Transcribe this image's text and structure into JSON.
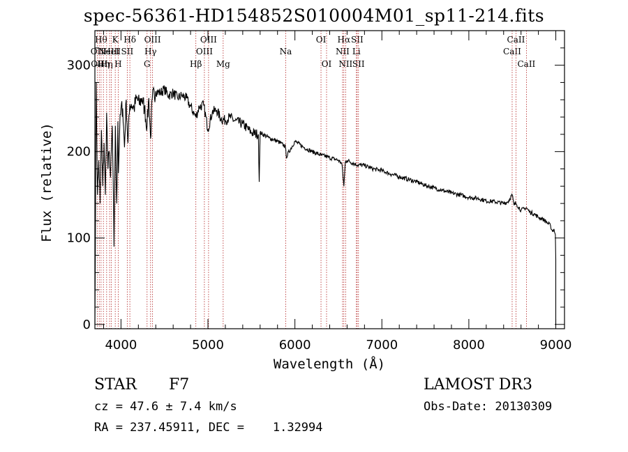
{
  "title": "spec-56361-HD154852S010004M01_sp11-214.fits",
  "info": {
    "object_class": "STAR",
    "subclass": "F7",
    "cz": "cz = 47.6 ± 7.4 km/s",
    "radec": "RA = 237.45911, DEC =    1.32994",
    "survey": "LAMOST DR3",
    "obs_date": "Obs-Date: 20130309"
  },
  "chart_data": {
    "type": "line",
    "title": "spec-56361-HD154852S010004M01_sp11-214.fits",
    "xlabel": "Wavelength (Å)",
    "ylabel": "Flux (relative)",
    "xlim": [
      3700,
      9100
    ],
    "ylim": [
      -5,
      340
    ],
    "xticks": [
      4000,
      5000,
      6000,
      7000,
      8000,
      9000
    ],
    "yticks": [
      0,
      100,
      200,
      300
    ],
    "series": [
      {
        "name": "flux",
        "x": [
          3700,
          3715,
          3730,
          3745,
          3760,
          3775,
          3790,
          3805,
          3820,
          3835,
          3850,
          3865,
          3880,
          3900,
          3920,
          3935,
          3950,
          3965,
          3970,
          3985,
          4000,
          4020,
          4040,
          4060,
          4080,
          4102,
          4120,
          4150,
          4180,
          4210,
          4240,
          4270,
          4300,
          4320,
          4340,
          4360,
          4400,
          4450,
          4500,
          4550,
          4600,
          4650,
          4700,
          4750,
          4800,
          4861,
          4900,
          4950,
          5000,
          5050,
          5100,
          5150,
          5200,
          5250,
          5300,
          5400,
          5500,
          5580,
          5590,
          5600,
          5700,
          5800,
          5890,
          5900,
          6000,
          6100,
          6200,
          6300,
          6400,
          6500,
          6540,
          6563,
          6580,
          6600,
          6700,
          6800,
          6900,
          7000,
          7100,
          7200,
          7300,
          7400,
          7500,
          7600,
          7700,
          7800,
          7900,
          8000,
          8100,
          8200,
          8300,
          8400,
          8450,
          8498,
          8520,
          8542,
          8600,
          8662,
          8700,
          8750,
          8800,
          8850,
          8900,
          8940,
          8960,
          8980,
          8995,
          9000
        ],
        "values": [
          0,
          280,
          150,
          190,
          140,
          225,
          160,
          210,
          150,
          245,
          180,
          200,
          170,
          230,
          90,
          230,
          140,
          235,
          175,
          225,
          250,
          250,
          205,
          260,
          210,
          255,
          255,
          250,
          262,
          255,
          262,
          250,
          230,
          262,
          215,
          262,
          270,
          268,
          272,
          265,
          268,
          262,
          265,
          262,
          252,
          240,
          252,
          254,
          226,
          246,
          248,
          238,
          236,
          240,
          236,
          232,
          222,
          220,
          165,
          222,
          216,
          212,
          206,
          194,
          212,
          205,
          200,
          196,
          193,
          190,
          186,
          160,
          188,
          190,
          185,
          184,
          180,
          178,
          174,
          171,
          168,
          165,
          161,
          158,
          155,
          152,
          150,
          147,
          146,
          143,
          142,
          140,
          142,
          150,
          138,
          140,
          132,
          135,
          130,
          128,
          124,
          122,
          118,
          114,
          108,
          110,
          104,
          75
        ]
      }
    ],
    "lines": [
      {
        "wave": 3727,
        "label": "OII",
        "row": 1
      },
      {
        "wave": 3750,
        "label": "OIII",
        "row": 2
      },
      {
        "wave": 3771,
        "label": "Hθ",
        "row": 0
      },
      {
        "wave": 3798,
        "label": "Hη",
        "row": 2
      },
      {
        "wave": 3835,
        "label": "Hη",
        "row": 2
      },
      {
        "wave": 3869,
        "label": "NeIII",
        "row": 1
      },
      {
        "wave": 3889,
        "label": "HeI",
        "row": 1
      },
      {
        "wave": 3934,
        "label": "K",
        "row": 0
      },
      {
        "wave": 3968,
        "label": "H",
        "row": 2
      },
      {
        "wave": 4072,
        "label": "SII",
        "row": 1
      },
      {
        "wave": 4102,
        "label": "Hδ",
        "row": 0
      },
      {
        "wave": 4300,
        "label": "G",
        "row": 2
      },
      {
        "wave": 4340,
        "label": "Hγ",
        "row": 1
      },
      {
        "wave": 4363,
        "label": "OIII",
        "row": 0
      },
      {
        "wave": 4861,
        "label": "Hβ",
        "row": 2
      },
      {
        "wave": 4959,
        "label": "OIII",
        "row": 1
      },
      {
        "wave": 5007,
        "label": "OIII",
        "row": 0
      },
      {
        "wave": 5175,
        "label": "Mg",
        "row": 2
      },
      {
        "wave": 5894,
        "label": "Na",
        "row": 1
      },
      {
        "wave": 6300,
        "label": "OI",
        "row": 0
      },
      {
        "wave": 6364,
        "label": "OI",
        "row": 2
      },
      {
        "wave": 6548,
        "label": "NII",
        "row": 1
      },
      {
        "wave": 6563,
        "label": "Hα",
        "row": 0
      },
      {
        "wave": 6583,
        "label": "NII",
        "row": 2
      },
      {
        "wave": 6707,
        "label": "Li",
        "row": 1
      },
      {
        "wave": 6716,
        "label": "SII",
        "row": 0
      },
      {
        "wave": 6731,
        "label": "SII",
        "row": 2
      },
      {
        "wave": 8498,
        "label": "CaII",
        "row": 1
      },
      {
        "wave": 8542,
        "label": "CaII",
        "row": 0
      },
      {
        "wave": 8662,
        "label": "CaII",
        "row": 2
      }
    ]
  }
}
